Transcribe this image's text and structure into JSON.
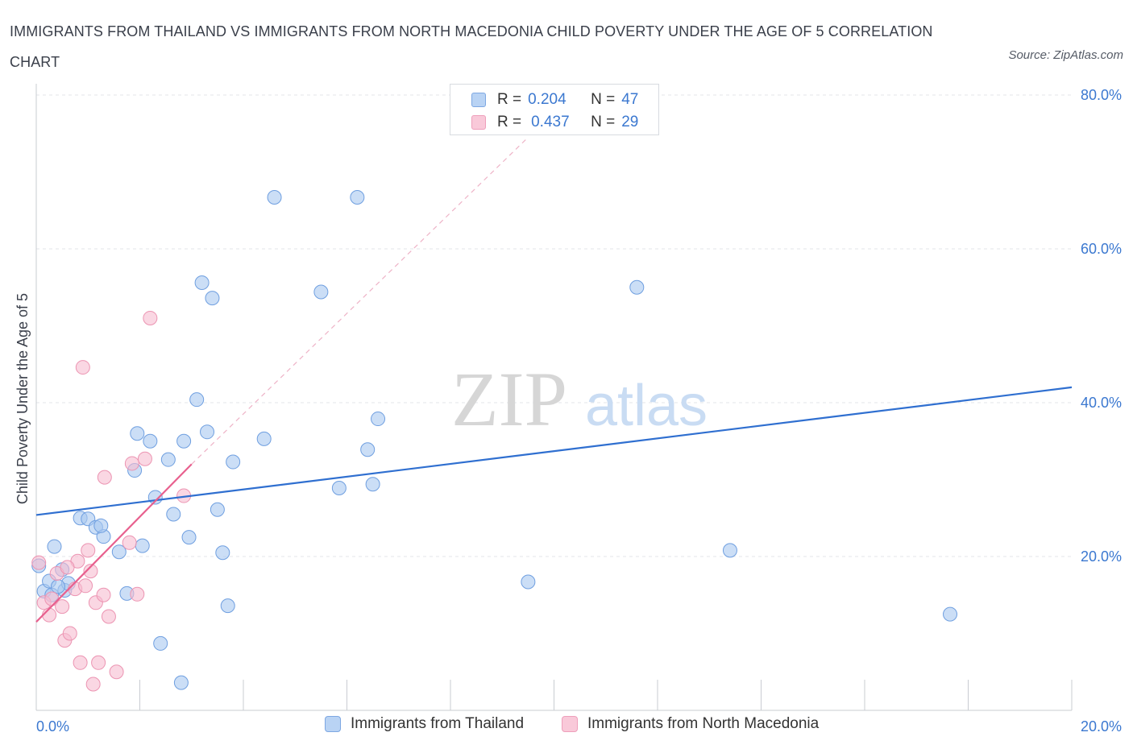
{
  "title": "IMMIGRANTS FROM THAILAND VS IMMIGRANTS FROM NORTH MACEDONIA CHILD POVERTY UNDER THE AGE OF 5 CORRELATION CHART",
  "source": "Source: ZipAtlas.com",
  "watermark": {
    "zip": "ZIP",
    "atlas": "atlas"
  },
  "legend": {
    "r_label": "R =",
    "n_label": "N =",
    "entries": [
      {
        "r": "0.204",
        "n": "47"
      },
      {
        "r": "0.437",
        "n": "29"
      }
    ]
  },
  "colors": {
    "thailand_fill": "#a9c8f0",
    "thailand_stroke": "#6f9fe0",
    "thailand_line": "#2f6fd0",
    "macedonia_fill": "#f7bdd0",
    "macedonia_stroke": "#ec94b2",
    "macedonia_line": "#e8608e",
    "axis_text": "#3b78d0"
  },
  "chart_data": {
    "type": "scatter",
    "title": "IMMIGRANTS FROM THAILAND VS IMMIGRANTS FROM NORTH MACEDONIA CHILD POVERTY UNDER THE AGE OF 5 CORRELATION CHART",
    "xlabel": "",
    "ylabel": "Child Poverty Under the Age of 5",
    "xlim": [
      0,
      20
    ],
    "ylim": [
      0,
      80
    ],
    "x_tick_labels": [
      "0.0%",
      "20.0%"
    ],
    "y_ticks": [
      20,
      40,
      60,
      80
    ],
    "y_tick_labels": [
      "20.0%",
      "40.0%",
      "60.0%",
      "80.0%"
    ],
    "series": [
      {
        "name": "Immigrants from Thailand",
        "r": 0.204,
        "n": 47,
        "trend": {
          "x": [
            0,
            20
          ],
          "y": [
            25.4,
            42.0
          ]
        },
        "points": [
          [
            0.05,
            18.8
          ],
          [
            0.15,
            15.5
          ],
          [
            0.25,
            16.8
          ],
          [
            0.3,
            15.0
          ],
          [
            0.35,
            21.3
          ],
          [
            0.5,
            18.3
          ],
          [
            0.55,
            15.6
          ],
          [
            0.62,
            16.5
          ],
          [
            0.85,
            25.0
          ],
          [
            1.0,
            24.9
          ],
          [
            1.15,
            23.8
          ],
          [
            1.3,
            22.6
          ],
          [
            1.25,
            24.0
          ],
          [
            1.6,
            20.6
          ],
          [
            1.75,
            15.2
          ],
          [
            1.9,
            31.2
          ],
          [
            1.95,
            36.0
          ],
          [
            2.05,
            21.4
          ],
          [
            2.2,
            35.0
          ],
          [
            2.3,
            27.7
          ],
          [
            2.4,
            8.7
          ],
          [
            2.55,
            32.6
          ],
          [
            2.65,
            25.5
          ],
          [
            2.8,
            3.6
          ],
          [
            2.85,
            35.0
          ],
          [
            2.95,
            22.5
          ],
          [
            3.1,
            40.4
          ],
          [
            3.2,
            55.6
          ],
          [
            3.3,
            36.2
          ],
          [
            3.4,
            53.6
          ],
          [
            3.5,
            26.1
          ],
          [
            3.6,
            20.5
          ],
          [
            3.7,
            13.6
          ],
          [
            3.8,
            32.3
          ],
          [
            4.4,
            35.3
          ],
          [
            4.6,
            66.7
          ],
          [
            5.5,
            54.4
          ],
          [
            5.85,
            28.9
          ],
          [
            6.2,
            66.7
          ],
          [
            6.4,
            33.9
          ],
          [
            6.5,
            29.4
          ],
          [
            6.6,
            37.9
          ],
          [
            9.5,
            16.7
          ],
          [
            11.6,
            55.0
          ],
          [
            13.4,
            20.8
          ],
          [
            17.65,
            12.5
          ],
          [
            0.42,
            16.1
          ]
        ]
      },
      {
        "name": "Immigrants from North Macedonia",
        "r": 0.437,
        "n": 29,
        "trend": {
          "x": [
            0,
            3
          ],
          "y": [
            11.5,
            32.0
          ],
          "dashed_extension": {
            "x": [
              3,
              9.5
            ],
            "y": [
              32.0,
              74.5
            ]
          }
        },
        "points": [
          [
            0.05,
            19.2
          ],
          [
            0.15,
            14.0
          ],
          [
            0.25,
            12.4
          ],
          [
            0.3,
            14.5
          ],
          [
            0.4,
            17.8
          ],
          [
            0.5,
            13.5
          ],
          [
            0.55,
            9.1
          ],
          [
            0.65,
            10.0
          ],
          [
            0.75,
            15.8
          ],
          [
            0.8,
            19.4
          ],
          [
            0.85,
            6.2
          ],
          [
            0.9,
            44.6
          ],
          [
            0.95,
            16.2
          ],
          [
            1.0,
            20.8
          ],
          [
            1.05,
            18.1
          ],
          [
            1.1,
            3.4
          ],
          [
            1.15,
            14.0
          ],
          [
            1.2,
            6.2
          ],
          [
            1.3,
            15.0
          ],
          [
            1.32,
            30.3
          ],
          [
            1.4,
            12.2
          ],
          [
            1.55,
            5.0
          ],
          [
            1.8,
            21.8
          ],
          [
            1.85,
            32.1
          ],
          [
            1.95,
            15.1
          ],
          [
            2.1,
            32.7
          ],
          [
            2.2,
            51.0
          ],
          [
            2.85,
            27.9
          ],
          [
            0.6,
            18.6
          ]
        ]
      }
    ]
  },
  "bottom_legend": {
    "thailand": "Immigrants from Thailand",
    "macedonia": "Immigrants from North Macedonia"
  }
}
